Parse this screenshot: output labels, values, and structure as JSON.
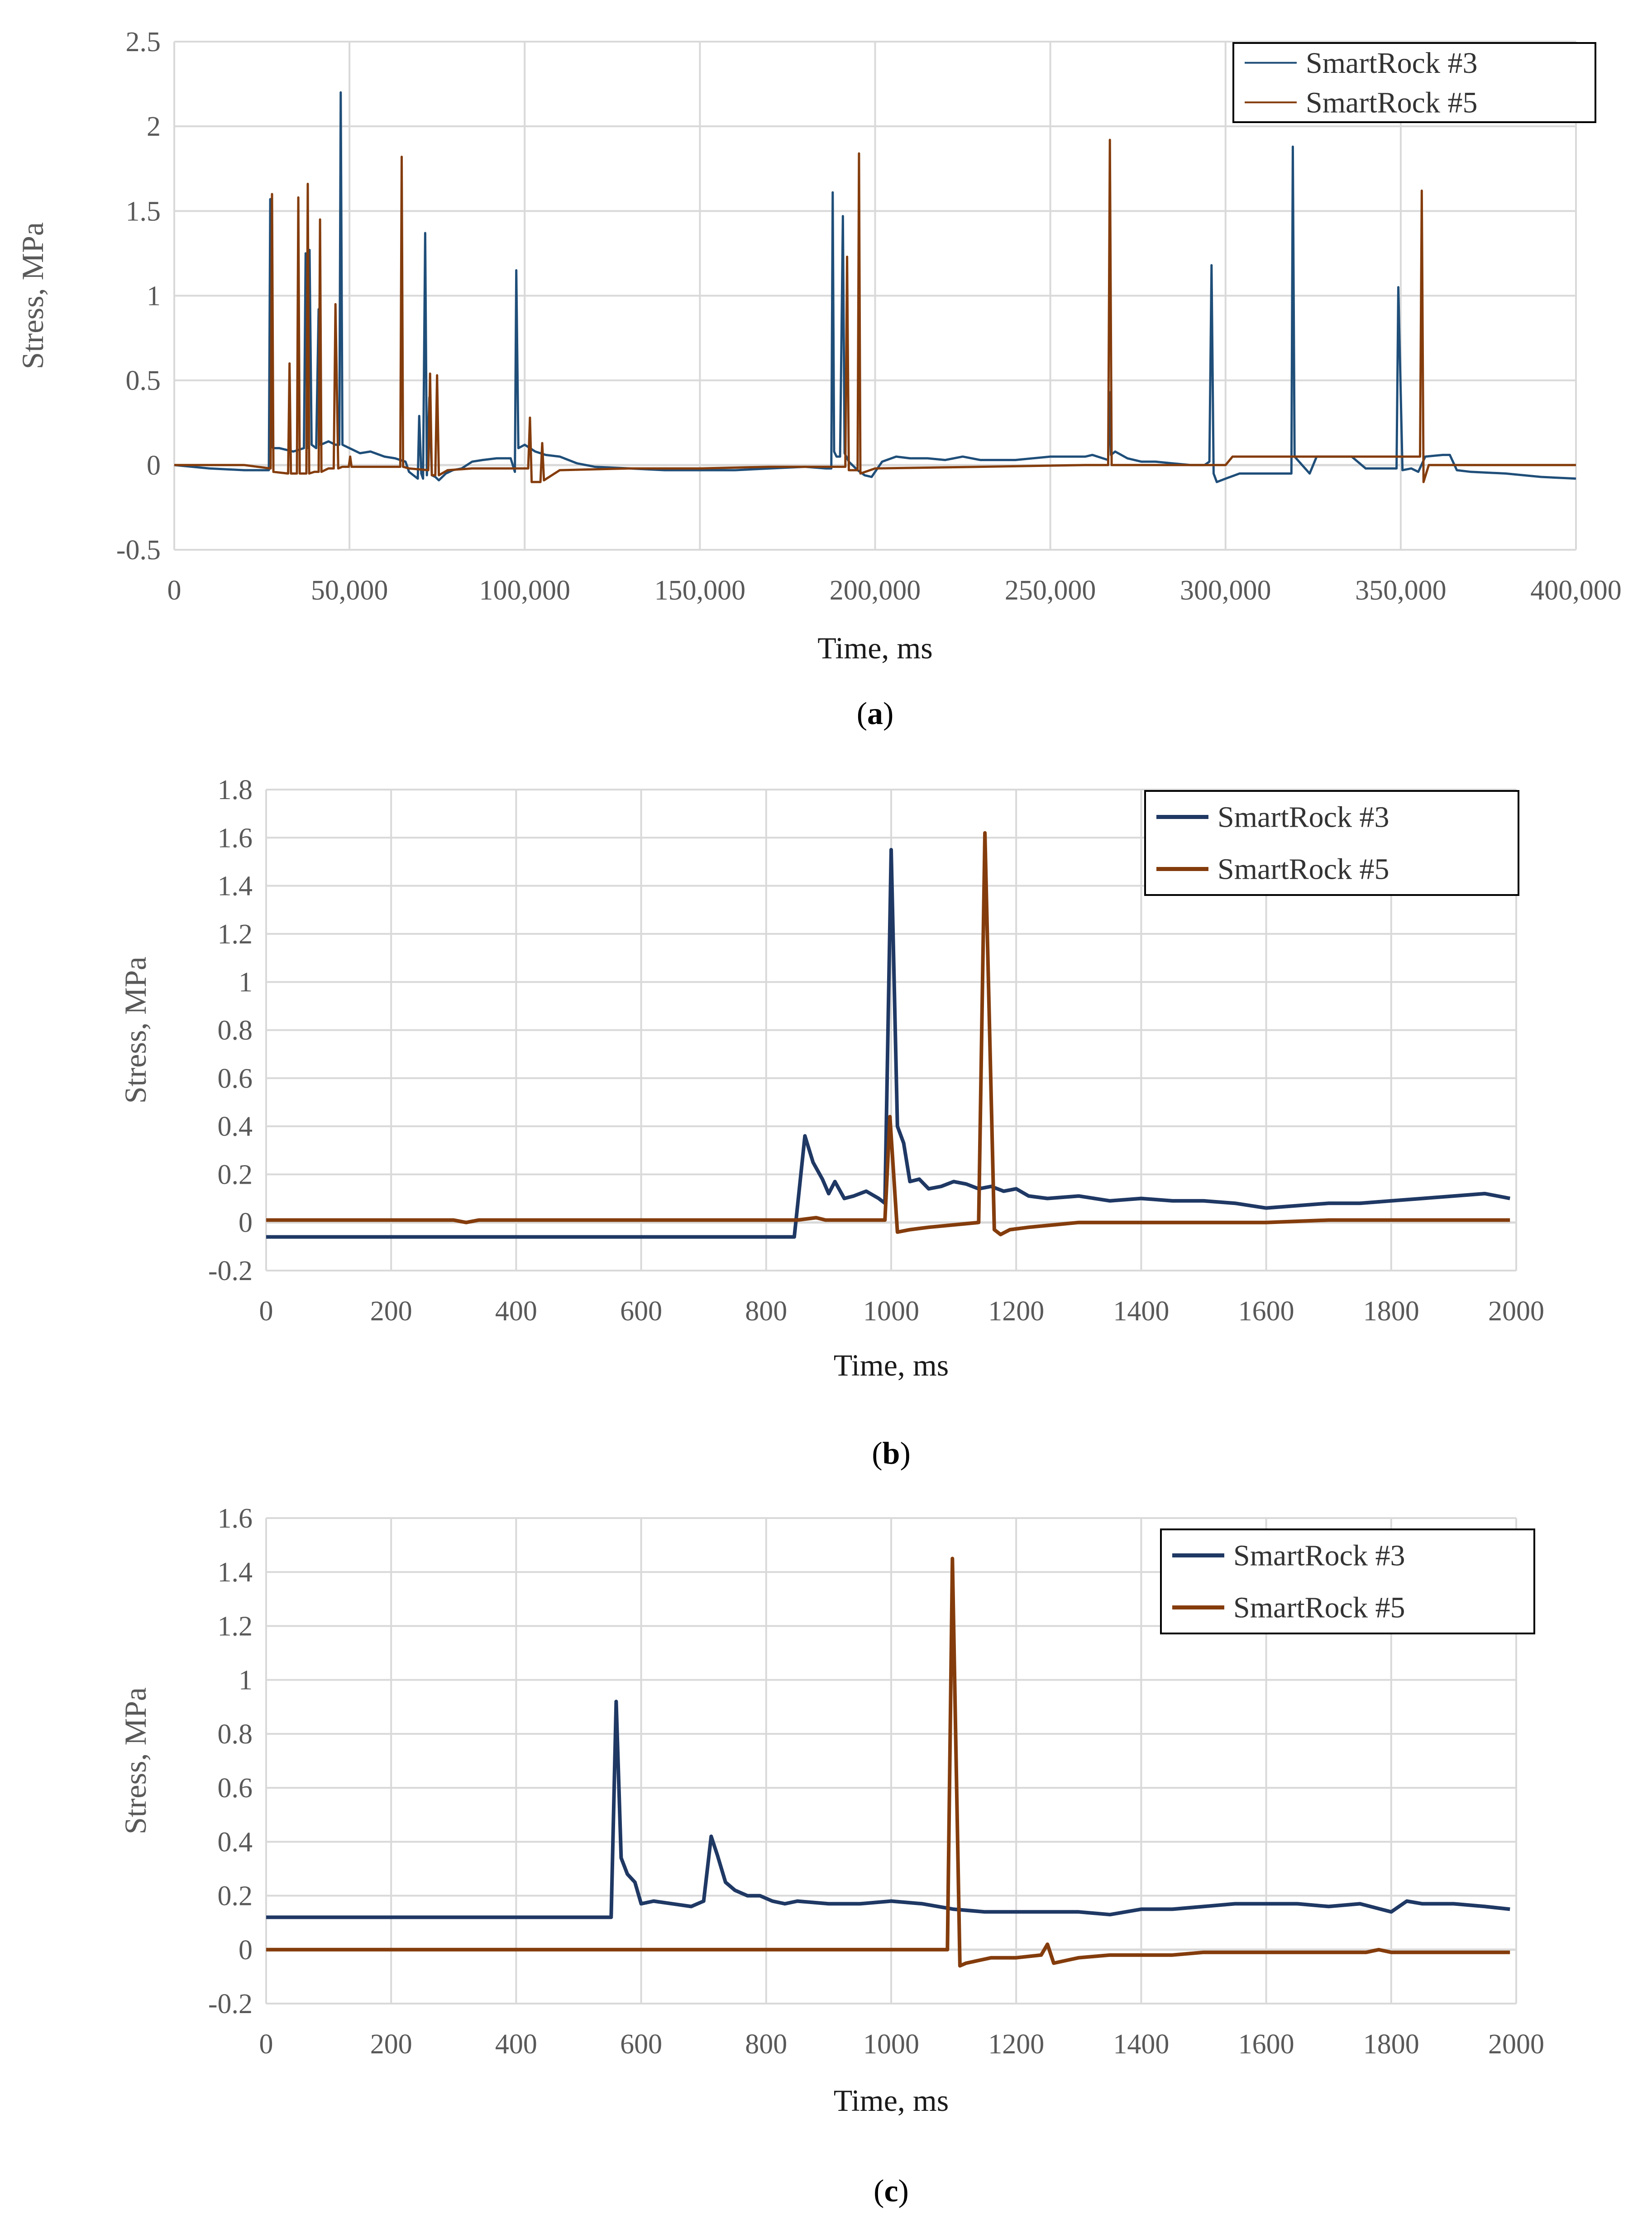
{
  "chart_data": [
    {
      "type": "line",
      "panel_label": "a",
      "xlabel": "Time, ms",
      "ylabel": "Stress, MPa",
      "xlim": [
        0,
        400000
      ],
      "ylim": [
        -0.5,
        2.5
      ],
      "x_ticks": [
        0,
        50000,
        100000,
        150000,
        200000,
        250000,
        300000,
        350000,
        400000
      ],
      "x_tick_labels": [
        "0",
        "50,000",
        "100,000",
        "150,000",
        "200,000",
        "250,000",
        "300,000",
        "350,000",
        "400,000"
      ],
      "y_ticks": [
        -0.5,
        0,
        0.5,
        1,
        1.5,
        2,
        2.5
      ],
      "y_tick_labels": [
        "-0.5",
        "0",
        "0.5",
        "1",
        "1.5",
        "2",
        "2.5"
      ],
      "grid": true,
      "legend_position": "top-right",
      "series": [
        {
          "name": "SmartRock #3",
          "color": "#1f4e79",
          "x": [
            0,
            10000,
            20000,
            27000,
            27400,
            27700,
            28200,
            30000,
            34000,
            37000,
            37500,
            38000,
            38600,
            39200,
            40500,
            41200,
            41800,
            44000,
            46000,
            47100,
            47500,
            48000,
            50000,
            53000,
            56000,
            60000,
            63000,
            66000,
            67000,
            69500,
            69900,
            70500,
            71000,
            71600,
            72100,
            72800,
            73500,
            74500,
            75500,
            77500,
            79500,
            82000,
            85000,
            88000,
            92000,
            96000,
            97200,
            97600,
            98200,
            100000,
            103000,
            106000,
            110000,
            115000,
            120000,
            130000,
            140000,
            150000,
            160000,
            170000,
            180000,
            186000,
            187500,
            187900,
            188300,
            189000,
            190000,
            190800,
            191300,
            192500,
            195000,
            197000,
            199000,
            202000,
            206000,
            210000,
            215000,
            220000,
            225000,
            230000,
            240000,
            250000,
            260000,
            262000,
            266500,
            266900,
            267300,
            268500,
            272000,
            276000,
            280000,
            285000,
            290000,
            294000,
            295400,
            296000,
            296600,
            297500,
            300000,
            304000,
            310000,
            316000,
            318800,
            319200,
            319700,
            321000,
            324000,
            326000,
            330000,
            336000,
            340000,
            346000,
            348300,
            348800,
            349300,
            350500,
            353000,
            355000,
            357000,
            362000,
            364000,
            366000,
            370000,
            380000,
            390000,
            400000
          ],
          "y": [
            0,
            -0.02,
            -0.03,
            -0.03,
            1.57,
            0.12,
            0.1,
            0.1,
            0.08,
            0.1,
            1.25,
            0.1,
            1.27,
            0.12,
            0.1,
            0.92,
            0.12,
            0.14,
            0.12,
            0.12,
            2.2,
            0.12,
            0.1,
            0.07,
            0.08,
            0.05,
            0.04,
            0.02,
            -0.04,
            -0.08,
            0.29,
            -0.05,
            -0.08,
            1.37,
            -0.06,
            0.4,
            -0.06,
            -0.07,
            -0.09,
            -0.05,
            -0.03,
            -0.02,
            0.02,
            0.03,
            0.04,
            0.04,
            -0.04,
            1.15,
            0.1,
            0.12,
            0.08,
            0.06,
            0.05,
            0.01,
            -0.01,
            -0.02,
            -0.03,
            -0.03,
            -0.03,
            -0.02,
            -0.01,
            -0.02,
            -0.02,
            1.61,
            0.08,
            0.05,
            0.05,
            1.47,
            0.07,
            0.02,
            -0.03,
            -0.06,
            -0.07,
            0.02,
            0.05,
            0.04,
            0.04,
            0.03,
            0.05,
            0.03,
            0.03,
            0.05,
            0.05,
            0.06,
            0.03,
            0.43,
            0.06,
            0.08,
            0.04,
            0.02,
            0.02,
            0.01,
            0,
            0,
            0.02,
            1.18,
            -0.05,
            -0.1,
            -0.08,
            -0.05,
            -0.05,
            -0.05,
            -0.05,
            1.88,
            0.05,
            0.02,
            -0.05,
            0.05,
            0.05,
            0.05,
            -0.02,
            -0.02,
            -0.02,
            -0.02,
            1.05,
            -0.03,
            -0.02,
            -0.04,
            0.05,
            0.06,
            0.06,
            -0.03,
            -0.04,
            -0.05,
            -0.07,
            -0.08
          ]
        },
        {
          "name": "SmartRock #5",
          "color": "#843c0c",
          "x": [
            0,
            10000,
            20000,
            27500,
            27900,
            28300,
            32500,
            32900,
            33300,
            35000,
            35400,
            35800,
            37700,
            38100,
            38500,
            40000,
            41200,
            41600,
            42000,
            44000,
            45500,
            46000,
            46800,
            48000,
            49800,
            50200,
            50600,
            55000,
            60000,
            64500,
            64900,
            65300,
            67000,
            72500,
            73000,
            73500,
            74500,
            75000,
            75500,
            78000,
            85000,
            90000,
            95000,
            101000,
            101500,
            102000,
            104500,
            105000,
            105500,
            110000,
            130000,
            150000,
            170000,
            186000,
            190000,
            191500,
            192000,
            192500,
            195000,
            195400,
            195800,
            200000,
            230000,
            260000,
            266500,
            267000,
            267500,
            280000,
            300000,
            302000,
            320000,
            340000,
            355500,
            356000,
            356500,
            358000,
            380000,
            400000
          ],
          "y": [
            0,
            0,
            0,
            -0.02,
            1.6,
            -0.04,
            -0.05,
            0.6,
            -0.05,
            -0.05,
            1.58,
            -0.05,
            -0.05,
            1.66,
            -0.05,
            -0.04,
            -0.04,
            1.45,
            -0.04,
            -0.02,
            -0.02,
            0.95,
            -0.02,
            -0.01,
            -0.01,
            0.05,
            -0.01,
            -0.01,
            -0.01,
            -0.01,
            1.82,
            -0.01,
            -0.02,
            -0.03,
            0.54,
            -0.06,
            -0.06,
            0.53,
            -0.06,
            -0.03,
            -0.02,
            -0.02,
            -0.02,
            -0.02,
            0.28,
            -0.1,
            -0.1,
            0.13,
            -0.09,
            -0.03,
            -0.02,
            -0.02,
            -0.01,
            -0.01,
            -0.01,
            -0.01,
            1.23,
            -0.03,
            -0.03,
            1.84,
            -0.05,
            -0.02,
            -0.01,
            0,
            0,
            1.92,
            0,
            0,
            0,
            0.05,
            0.05,
            0.05,
            0.05,
            1.62,
            -0.1,
            0,
            0,
            0
          ]
        }
      ]
    },
    {
      "type": "line",
      "panel_label": "b",
      "xlabel": "Time, ms",
      "ylabel": "Stress, MPa",
      "xlim": [
        0,
        2000
      ],
      "ylim": [
        -0.2,
        1.8
      ],
      "x_ticks": [
        0,
        200,
        400,
        600,
        800,
        1000,
        1200,
        1400,
        1600,
        1800,
        2000
      ],
      "x_tick_labels": [
        "0",
        "200",
        "400",
        "600",
        "800",
        "1000",
        "1200",
        "1400",
        "1600",
        "1800",
        "2000"
      ],
      "y_ticks": [
        -0.2,
        0,
        0.2,
        0.4,
        0.6,
        0.8,
        1,
        1.2,
        1.4,
        1.6,
        1.8
      ],
      "y_tick_labels": [
        "-0.2",
        "0",
        "0.2",
        "0.4",
        "0.6",
        "0.8",
        "1",
        "1.2",
        "1.4",
        "1.6",
        "1.8"
      ],
      "grid": true,
      "legend_position": "top-right",
      "series": [
        {
          "name": "SmartRock #3",
          "color": "#1f3864",
          "x": [
            0,
            50,
            100,
            150,
            200,
            250,
            300,
            350,
            400,
            450,
            500,
            550,
            600,
            650,
            700,
            750,
            800,
            845,
            862,
            875,
            890,
            900,
            910,
            925,
            940,
            960,
            980,
            990,
            1000,
            1010,
            1020,
            1030,
            1045,
            1060,
            1080,
            1100,
            1120,
            1140,
            1160,
            1180,
            1200,
            1220,
            1250,
            1300,
            1350,
            1400,
            1450,
            1500,
            1550,
            1600,
            1650,
            1700,
            1750,
            1800,
            1850,
            1900,
            1950,
            1990
          ],
          "y": [
            -0.06,
            -0.06,
            -0.06,
            -0.06,
            -0.06,
            -0.06,
            -0.06,
            -0.06,
            -0.06,
            -0.06,
            -0.06,
            -0.06,
            -0.06,
            -0.06,
            -0.06,
            -0.06,
            -0.06,
            -0.06,
            0.36,
            0.25,
            0.18,
            0.12,
            0.17,
            0.1,
            0.11,
            0.13,
            0.1,
            0.08,
            1.55,
            0.4,
            0.33,
            0.17,
            0.18,
            0.14,
            0.15,
            0.17,
            0.16,
            0.14,
            0.15,
            0.13,
            0.14,
            0.11,
            0.1,
            0.11,
            0.09,
            0.1,
            0.09,
            0.09,
            0.08,
            0.06,
            0.07,
            0.08,
            0.08,
            0.09,
            0.1,
            0.11,
            0.12,
            0.1
          ]
        },
        {
          "name": "SmartRock #5",
          "color": "#843c0c",
          "x": [
            0,
            100,
            200,
            300,
            320,
            340,
            400,
            500,
            600,
            700,
            800,
            850,
            880,
            895,
            910,
            950,
            990,
            998,
            1010,
            1030,
            1060,
            1100,
            1140,
            1150,
            1165,
            1175,
            1190,
            1220,
            1260,
            1300,
            1400,
            1500,
            1600,
            1700,
            1800,
            1900,
            1990
          ],
          "y": [
            0.01,
            0.01,
            0.01,
            0.01,
            0,
            0.01,
            0.01,
            0.01,
            0.01,
            0.01,
            0.01,
            0.01,
            0.02,
            0.01,
            0.01,
            0.01,
            0.01,
            0.44,
            -0.04,
            -0.03,
            -0.02,
            -0.01,
            0,
            1.62,
            -0.03,
            -0.05,
            -0.03,
            -0.02,
            -0.01,
            0,
            0,
            0,
            0,
            0.01,
            0.01,
            0.01,
            0.01
          ]
        }
      ]
    },
    {
      "type": "line",
      "panel_label": "c",
      "xlabel": "Time, ms",
      "ylabel": "Stress, MPa",
      "xlim": [
        0,
        2000
      ],
      "ylim": [
        -0.2,
        1.6
      ],
      "x_ticks": [
        0,
        200,
        400,
        600,
        800,
        1000,
        1200,
        1400,
        1600,
        1800,
        2000
      ],
      "x_tick_labels": [
        "0",
        "200",
        "400",
        "600",
        "800",
        "1000",
        "1200",
        "1400",
        "1600",
        "1800",
        "2000"
      ],
      "y_ticks": [
        -0.2,
        0,
        0.2,
        0.4,
        0.6,
        0.8,
        1,
        1.2,
        1.4,
        1.6
      ],
      "y_tick_labels": [
        "-0.2",
        "0",
        "0.2",
        "0.4",
        "0.6",
        "0.8",
        "1",
        "1.2",
        "1.4",
        "1.6"
      ],
      "grid": true,
      "legend_position": "top-right",
      "series": [
        {
          "name": "SmartRock #3",
          "color": "#1f3864",
          "x": [
            0,
            50,
            100,
            150,
            200,
            250,
            300,
            350,
            400,
            450,
            500,
            552,
            560,
            568,
            578,
            590,
            600,
            620,
            650,
            680,
            700,
            712,
            722,
            735,
            750,
            770,
            790,
            810,
            830,
            850,
            900,
            950,
            1000,
            1050,
            1100,
            1150,
            1200,
            1250,
            1300,
            1350,
            1400,
            1450,
            1500,
            1550,
            1600,
            1650,
            1700,
            1750,
            1800,
            1825,
            1850,
            1900,
            1950,
            1990
          ],
          "y": [
            0.12,
            0.12,
            0.12,
            0.12,
            0.12,
            0.12,
            0.12,
            0.12,
            0.12,
            0.12,
            0.12,
            0.12,
            0.92,
            0.34,
            0.28,
            0.25,
            0.17,
            0.18,
            0.17,
            0.16,
            0.18,
            0.42,
            0.35,
            0.25,
            0.22,
            0.2,
            0.2,
            0.18,
            0.17,
            0.18,
            0.17,
            0.17,
            0.18,
            0.17,
            0.15,
            0.14,
            0.14,
            0.14,
            0.14,
            0.13,
            0.15,
            0.15,
            0.16,
            0.17,
            0.17,
            0.17,
            0.16,
            0.17,
            0.14,
            0.18,
            0.17,
            0.17,
            0.16,
            0.15
          ]
        },
        {
          "name": "SmartRock #5",
          "color": "#843c0c",
          "x": [
            0,
            100,
            200,
            300,
            400,
            500,
            600,
            700,
            800,
            900,
            1000,
            1090,
            1098,
            1110,
            1120,
            1140,
            1160,
            1200,
            1240,
            1250,
            1260,
            1280,
            1300,
            1350,
            1400,
            1450,
            1500,
            1600,
            1700,
            1760,
            1780,
            1800,
            1850,
            1900,
            1950,
            1990
          ],
          "y": [
            0,
            0,
            0,
            0,
            0,
            0,
            0,
            0,
            0,
            0,
            0,
            0,
            1.45,
            -0.06,
            -0.05,
            -0.04,
            -0.03,
            -0.03,
            -0.02,
            0.02,
            -0.05,
            -0.04,
            -0.03,
            -0.02,
            -0.02,
            -0.02,
            -0.01,
            -0.01,
            -0.01,
            -0.01,
            0,
            -0.01,
            -0.01,
            -0.01,
            -0.01,
            -0.01
          ]
        }
      ]
    }
  ]
}
